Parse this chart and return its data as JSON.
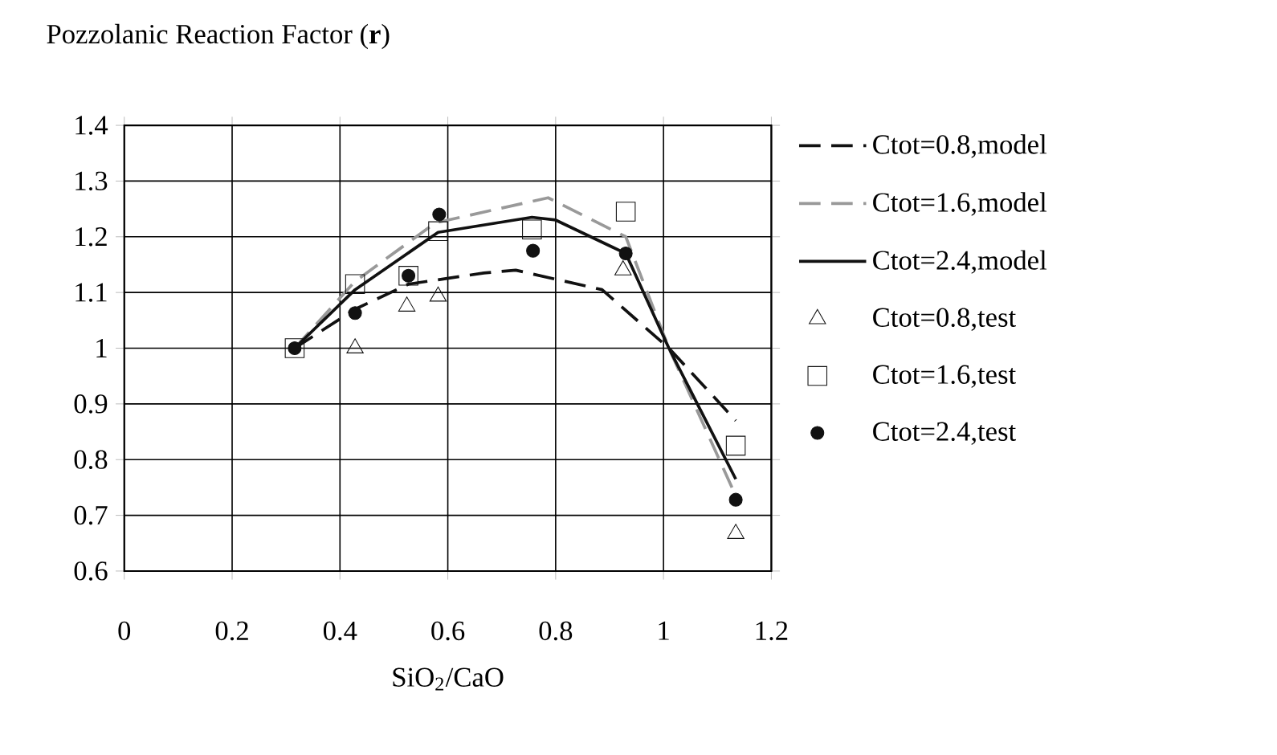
{
  "chart_data": {
    "type": "line",
    "title": "Pozzolanic Reaction Factor (**r**)",
    "xlabel": "SiO$_{2}$/CaO",
    "xlim": [
      0,
      1.2
    ],
    "ylim": [
      0.6,
      1.4
    ],
    "xticks": [
      0,
      0.2,
      0.4,
      0.6,
      0.8,
      1,
      1.2
    ],
    "yticks": [
      0.6,
      0.7,
      0.8,
      0.9,
      1,
      1.1,
      1.2,
      1.3,
      1.4
    ],
    "grid": true,
    "legend": "right",
    "series": [
      {
        "name": "Ctot=0.8,model",
        "line_style": "dashed",
        "color": "#111111",
        "x": [
          0.316,
          0.428,
          0.527,
          0.667,
          0.726,
          0.886,
          1.01,
          1.134
        ],
        "values": [
          1.0,
          1.07,
          1.115,
          1.135,
          1.14,
          1.105,
          1.0,
          0.87
        ]
      },
      {
        "name": "Ctot=1.6,model",
        "line_style": "dashed",
        "color": "#999999",
        "x": [
          0.316,
          0.428,
          0.577,
          0.786,
          0.93,
          1.01,
          1.134
        ],
        "values": [
          1.0,
          1.12,
          1.225,
          1.27,
          1.2,
          1.0,
          0.735
        ]
      },
      {
        "name": "Ctot=2.4,model",
        "line_style": "solid",
        "color": "#111111",
        "x": [
          0.316,
          0.428,
          0.582,
          0.756,
          0.8,
          0.93,
          1.01,
          1.134
        ],
        "values": [
          1.0,
          1.105,
          1.208,
          1.235,
          1.23,
          1.17,
          1.0,
          0.765
        ]
      },
      {
        "name": "Ctot=0.8,test",
        "type": "scatter",
        "marker": "triangle",
        "color": "#111111",
        "x": [
          0.428,
          0.524,
          0.582,
          0.925,
          1.134
        ],
        "values": [
          1.0,
          1.075,
          1.093,
          1.14,
          0.667
        ]
      },
      {
        "name": "Ctot=1.6,test",
        "type": "scatter",
        "marker": "square",
        "color": "#111111",
        "x": [
          0.316,
          0.428,
          0.527,
          0.582,
          0.756,
          0.93,
          1.134
        ],
        "values": [
          1.0,
          1.115,
          1.13,
          1.21,
          1.213,
          1.245,
          0.825
        ]
      },
      {
        "name": "Ctot=2.4,test",
        "type": "scatter",
        "marker": "circle",
        "color": "#111111",
        "x": [
          0.316,
          0.428,
          0.527,
          0.584,
          0.758,
          0.93,
          1.134
        ],
        "values": [
          1.0,
          1.063,
          1.13,
          1.24,
          1.175,
          1.17,
          0.728
        ]
      }
    ]
  }
}
